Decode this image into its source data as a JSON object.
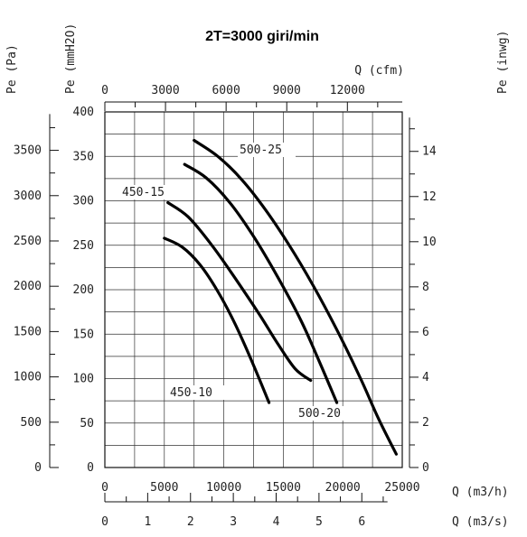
{
  "chart_data": {
    "type": "line",
    "title": "2T=3000 giri/min",
    "axes": {
      "y_pa": {
        "label": "Pe (Pa)",
        "ticks": [
          0,
          500,
          1000,
          1500,
          2000,
          2500,
          3000,
          3500
        ]
      },
      "y_mmh2o": {
        "label": "Pe (mmH2O)",
        "ticks": [
          0,
          50,
          100,
          150,
          200,
          250,
          300,
          350,
          400
        ],
        "range": [
          0,
          400
        ]
      },
      "y_inwg": {
        "label": "Pe (inwg)",
        "ticks": [
          0,
          2,
          4,
          6,
          8,
          10,
          12,
          14
        ]
      },
      "x_cfm": {
        "label": "Q (cfm)",
        "ticks": [
          0,
          3000,
          6000,
          9000,
          12000
        ]
      },
      "x_m3h": {
        "label": "Q (m3/h)",
        "ticks": [
          0,
          5000,
          10000,
          15000,
          20000,
          25000
        ],
        "range": [
          0,
          25000
        ]
      },
      "x_m3s": {
        "label": "Q (m3/s)",
        "ticks": [
          0,
          1,
          2,
          3,
          4,
          5,
          6
        ]
      }
    },
    "grid": true,
    "series": [
      {
        "name": "450-10",
        "points": [
          [
            5000,
            258
          ],
          [
            6500,
            248
          ],
          [
            8000,
            228
          ],
          [
            9500,
            198
          ],
          [
            11000,
            160
          ],
          [
            12500,
            115
          ],
          [
            13800,
            73
          ]
        ]
      },
      {
        "name": "450-15",
        "points": [
          [
            5300,
            298
          ],
          [
            7000,
            282
          ],
          [
            9000,
            250
          ],
          [
            11000,
            212
          ],
          [
            13000,
            172
          ],
          [
            14500,
            140
          ],
          [
            16000,
            111
          ],
          [
            17300,
            98
          ]
        ]
      },
      {
        "name": "500-20",
        "points": [
          [
            6700,
            341
          ],
          [
            8500,
            326
          ],
          [
            10500,
            298
          ],
          [
            12500,
            260
          ],
          [
            14500,
            215
          ],
          [
            16500,
            165
          ],
          [
            18000,
            120
          ],
          [
            19500,
            73
          ]
        ]
      },
      {
        "name": "500-25",
        "points": [
          [
            7500,
            368
          ],
          [
            9500,
            350
          ],
          [
            11500,
            324
          ],
          [
            13500,
            290
          ],
          [
            15500,
            250
          ],
          [
            17500,
            205
          ],
          [
            19500,
            155
          ],
          [
            21500,
            100
          ],
          [
            23000,
            55
          ],
          [
            24500,
            15
          ]
        ]
      }
    ],
    "annotations": [
      "450-10",
      "450-15",
      "500-20",
      "500-25"
    ]
  }
}
